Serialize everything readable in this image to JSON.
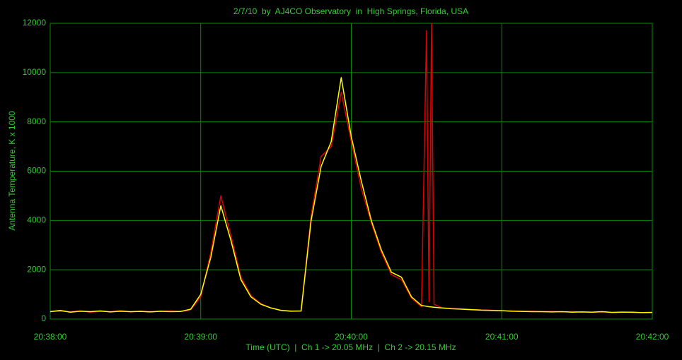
{
  "chart_data": {
    "type": "line",
    "title": "2/7/10  by  AJ4CO Observatory  in  High Springs, Florida, USA",
    "y_label": "Antenna Temperature, K x 1000",
    "x_label": "Time (UTC)  |  Ch 1 -> 20.05 MHz  |  Ch 2 -> 20.15 MHz",
    "x": [
      74280,
      74284,
      74288,
      74292,
      74296,
      74300,
      74304,
      74308,
      74312,
      74316,
      74320,
      74324,
      74328,
      74332,
      74336,
      74340,
      74344,
      74348,
      74352,
      74356,
      74360,
      74364,
      74368,
      74372,
      74376,
      74380,
      74384,
      74388,
      74392,
      74396,
      74400,
      74404,
      74408,
      74412,
      74416,
      74420,
      74424,
      74428,
      74430,
      74431,
      74432,
      74433,
      74436,
      74440,
      74444,
      74448,
      74452,
      74456,
      74460,
      74464,
      74468,
      74472,
      74476,
      74480,
      74484,
      74488,
      74492,
      74496,
      74500,
      74504,
      74508,
      74512,
      74516,
      74520
    ],
    "series": [
      {
        "color": "#dd0000",
        "values": [
          300,
          320,
          300,
          330,
          280,
          310,
          300,
          340,
          290,
          320,
          300,
          310,
          330,
          300,
          380,
          900,
          2700,
          5000,
          3400,
          1700,
          950,
          620,
          450,
          360,
          330,
          320,
          4200,
          6600,
          7000,
          9200,
          7200,
          5300,
          3900,
          2700,
          1800,
          1600,
          850,
          500,
          11700,
          700,
          12000,
          600,
          460,
          430,
          410,
          390,
          370,
          360,
          340,
          330,
          310,
          320,
          300,
          310,
          290,
          300,
          290,
          280,
          290,
          280,
          290,
          270,
          270,
          280
        ]
      },
      {
        "color": "#ffff00",
        "values": [
          300,
          350,
          280,
          320,
          300,
          330,
          290,
          320,
          300,
          310,
          290,
          320,
          300,
          310,
          400,
          1000,
          2500,
          4600,
          3200,
          1600,
          900,
          600,
          450,
          350,
          320,
          330,
          4000,
          6200,
          7200,
          9800,
          7400,
          5600,
          4000,
          2800,
          1900,
          1700,
          900,
          550,
          520,
          500,
          490,
          480,
          450,
          420,
          400,
          380,
          360,
          350,
          340,
          320,
          310,
          300,
          300,
          290,
          300,
          280,
          290,
          280,
          300,
          270,
          280,
          280,
          260,
          270
        ]
      }
    ],
    "xlim": [
      74280,
      74520
    ],
    "xticks": [
      {
        "value": 74280,
        "label": "20:38:00"
      },
      {
        "value": 74340,
        "label": "20:39:00"
      },
      {
        "value": 74400,
        "label": "20:40:00"
      },
      {
        "value": 74460,
        "label": "20:41:00"
      },
      {
        "value": 74520,
        "label": "20:42:00"
      }
    ],
    "ylim": [
      0,
      12000
    ],
    "yticks": [
      0,
      2000,
      4000,
      6000,
      8000,
      10000,
      12000
    ],
    "grid": true
  }
}
